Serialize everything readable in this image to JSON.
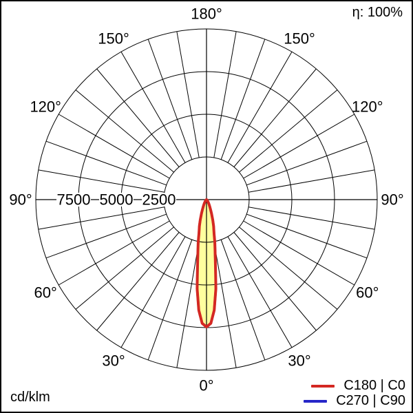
{
  "header": {
    "efficiency": "η: 100%"
  },
  "footer": {
    "unit": "cd/klm"
  },
  "legend": {
    "items": [
      {
        "label": "C180 | C0",
        "color": "#d42822"
      },
      {
        "label": "C270 | C90",
        "color": "#2626c8"
      }
    ]
  },
  "polar": {
    "radial_ticks": [
      {
        "text": "7500",
        "value": 7500
      },
      {
        "text": "5000",
        "value": 5000
      },
      {
        "text": "2500",
        "value": 2500
      }
    ],
    "angle_labels": [
      {
        "text": "180°",
        "gamma": 180,
        "side": "center"
      },
      {
        "text": "150°",
        "gamma": 150,
        "side": "left"
      },
      {
        "text": "150°",
        "gamma": 150,
        "side": "right"
      },
      {
        "text": "120°",
        "gamma": 120,
        "side": "left"
      },
      {
        "text": "120°",
        "gamma": 120,
        "side": "right"
      },
      {
        "text": "90°",
        "gamma": 90,
        "side": "left"
      },
      {
        "text": "90°",
        "gamma": 90,
        "side": "right"
      },
      {
        "text": "60°",
        "gamma": 60,
        "side": "left"
      },
      {
        "text": "60°",
        "gamma": 60,
        "side": "right"
      },
      {
        "text": "30°",
        "gamma": 30,
        "side": "left"
      },
      {
        "text": "30°",
        "gamma": 30,
        "side": "right"
      },
      {
        "text": "0°",
        "gamma": 0,
        "side": "center"
      }
    ]
  },
  "chart_data": {
    "type": "polar_line",
    "units": "cd/klm",
    "efficiency_eta_percent": 100,
    "angular_axis": {
      "zero_direction": "down",
      "labeled_ticks_deg": [
        0,
        30,
        60,
        90,
        120,
        150,
        180
      ],
      "grid_step_deg": 10,
      "symmetric_labels": true
    },
    "radial_axis": {
      "labeled_ticks": [
        2500,
        5000,
        7500
      ],
      "tick_step": 2500,
      "max": 10000
    },
    "series": [
      {
        "name": "C180 | C0",
        "color": "#d42822",
        "fill": "#ffff9e",
        "points_gamma_cd_per_klm": [
          [
            0,
            7460
          ],
          [
            2,
            7250
          ],
          [
            4,
            6500
          ],
          [
            6,
            5250
          ],
          [
            7.5,
            4050
          ],
          [
            9,
            3250
          ],
          [
            11,
            2550
          ],
          [
            12.5,
            2050
          ],
          [
            15,
            1600
          ],
          [
            17,
            1250
          ],
          [
            20,
            850
          ],
          [
            22,
            650
          ],
          [
            25,
            450
          ],
          [
            28,
            330
          ],
          [
            31,
            235
          ],
          [
            35,
            150
          ],
          [
            40,
            90
          ],
          [
            45,
            55
          ],
          [
            50,
            35
          ],
          [
            60,
            15
          ],
          [
            70,
            5
          ],
          [
            80,
            2
          ],
          [
            90,
            0
          ]
        ]
      },
      {
        "name": "C270 | C90",
        "color": "#2626c8",
        "fill": null,
        "coincides_with": "C180 | C0",
        "points_gamma_cd_per_klm": [
          [
            0,
            7460
          ],
          [
            2,
            7250
          ],
          [
            4,
            6500
          ],
          [
            6,
            5250
          ],
          [
            7.5,
            4050
          ],
          [
            9,
            3250
          ],
          [
            11,
            2550
          ],
          [
            12.5,
            2050
          ],
          [
            15,
            1600
          ],
          [
            17,
            1250
          ],
          [
            20,
            850
          ],
          [
            22,
            650
          ],
          [
            25,
            450
          ],
          [
            28,
            330
          ],
          [
            31,
            235
          ],
          [
            35,
            150
          ],
          [
            40,
            90
          ],
          [
            45,
            55
          ],
          [
            50,
            35
          ],
          [
            60,
            15
          ],
          [
            70,
            5
          ],
          [
            80,
            2
          ],
          [
            90,
            0
          ]
        ]
      }
    ]
  }
}
